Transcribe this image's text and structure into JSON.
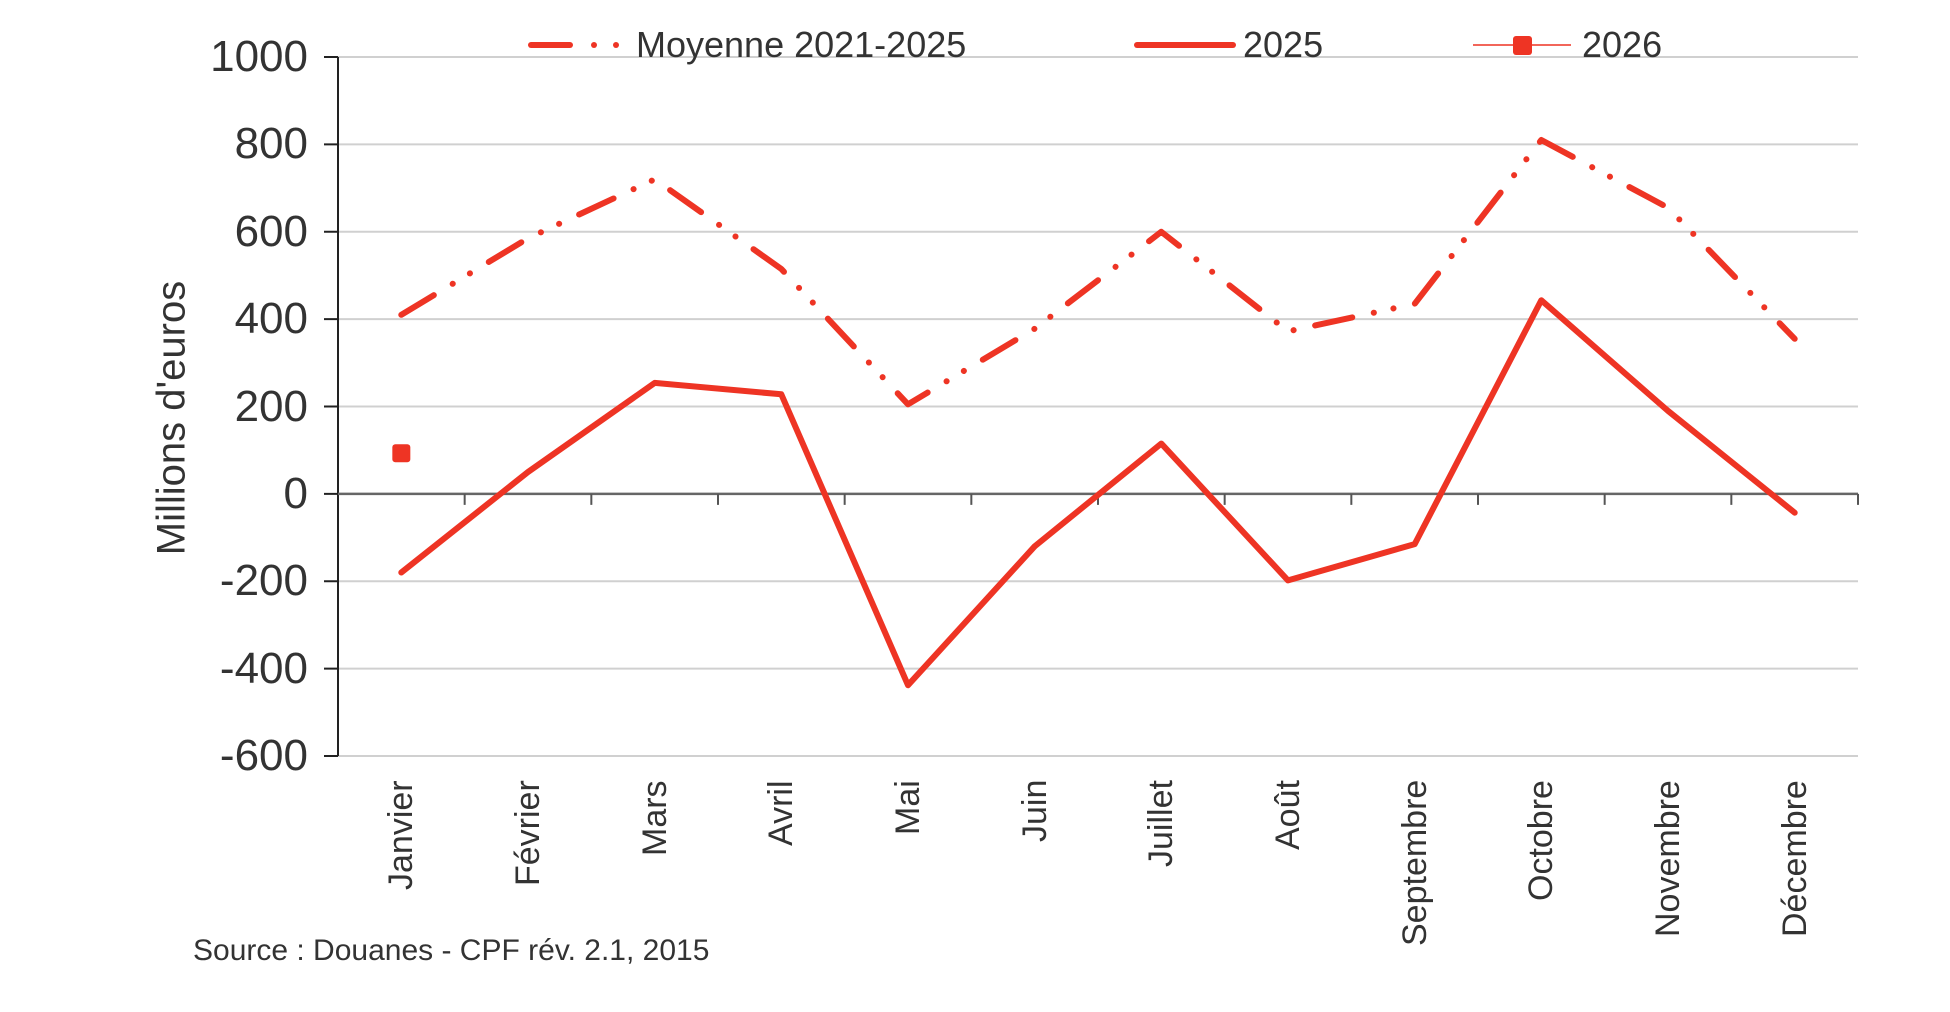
{
  "chart_data": {
    "type": "line",
    "title": "",
    "xlabel": "",
    "ylabel": "Millions d'euros",
    "ylim": [
      -600,
      1000
    ],
    "yticks": [
      "1000",
      "800",
      "600",
      "400",
      "200",
      "0",
      "-200",
      "-400",
      "-600"
    ],
    "grid": true,
    "legend_position": "top",
    "categories": [
      "Janvier",
      "Février",
      "Mars",
      "Avril",
      "Mai",
      "Juin",
      "Juillet",
      "Août",
      "Septembre",
      "Octobre",
      "Novembre",
      "Décembre"
    ],
    "series": [
      {
        "name": "Moyenne 2021-2025",
        "style": "dash-dot-dot",
        "color": "#EE3424",
        "values": [
          410,
          585,
          720,
          515,
          205,
          378,
          600,
          372,
          435,
          810,
          655,
          355
        ]
      },
      {
        "name": "2025",
        "style": "solid",
        "color": "#EE3424",
        "values": [
          -180,
          50,
          254,
          228,
          -438,
          -120,
          115,
          -198,
          -115,
          443,
          190,
          -43
        ]
      },
      {
        "name": "2026",
        "style": "marker-square",
        "color": "#EE3424",
        "values": [
          93,
          null,
          null,
          null,
          null,
          null,
          null,
          null,
          null,
          null,
          null,
          null
        ]
      }
    ],
    "source": "Source : Douanes - CPF  rév. 2.1, 2015"
  },
  "legend": {
    "items": [
      {
        "label": "Moyenne 2021-2025",
        "icon": "dash-dot-dot-line-icon"
      },
      {
        "label": "2025",
        "icon": "solid-line-icon"
      },
      {
        "label": "2026",
        "icon": "square-marker-line-icon"
      }
    ]
  },
  "colors": {
    "series": "#EE3424",
    "text": "#333333",
    "grid": "#D0D0D0",
    "axis": "#222222"
  }
}
